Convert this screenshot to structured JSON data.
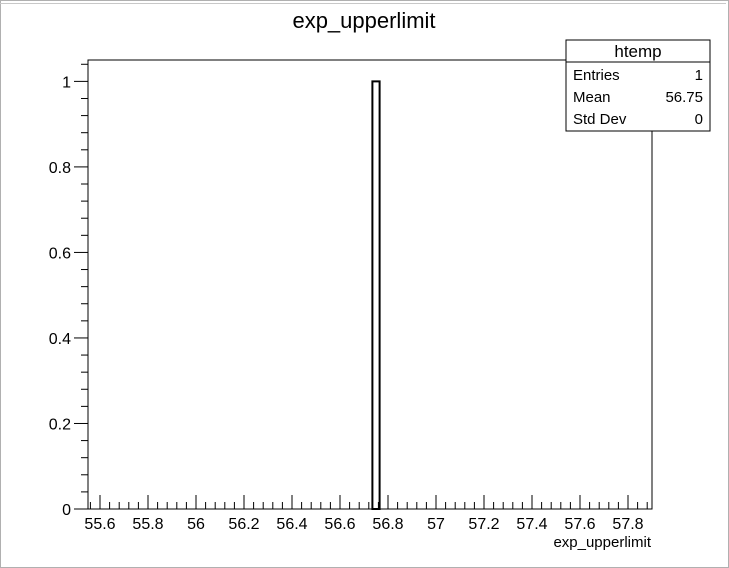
{
  "chart_data": {
    "type": "bar",
    "title": "exp_upperlimit",
    "xlabel": "exp_upperlimit",
    "ylabel": "",
    "xlim": [
      55.55,
      57.9
    ],
    "ylim": [
      0,
      1.05
    ],
    "x_ticks": [
      55.6,
      55.8,
      56,
      56.2,
      56.4,
      56.6,
      56.8,
      57,
      57.2,
      57.4,
      57.6,
      57.8
    ],
    "x_tick_labels": [
      "55.6",
      "55.8",
      "56",
      "56.2",
      "56.4",
      "56.6",
      "56.8",
      "57",
      "57.2",
      "57.4",
      "57.6",
      "57.8"
    ],
    "y_ticks": [
      0,
      0.2,
      0.4,
      0.6,
      0.8,
      1
    ],
    "y_tick_labels": [
      "0",
      "0.2",
      "0.4",
      "0.6",
      "0.8",
      "1"
    ],
    "bins": [
      {
        "low": 56.735,
        "high": 56.765,
        "value": 1
      }
    ],
    "grid": false,
    "stats_box": {
      "name": "htemp",
      "rows": [
        {
          "label": "Entries",
          "value": "1"
        },
        {
          "label": "Mean",
          "value": "56.75"
        },
        {
          "label": "Std Dev",
          "value": "0"
        }
      ]
    }
  }
}
